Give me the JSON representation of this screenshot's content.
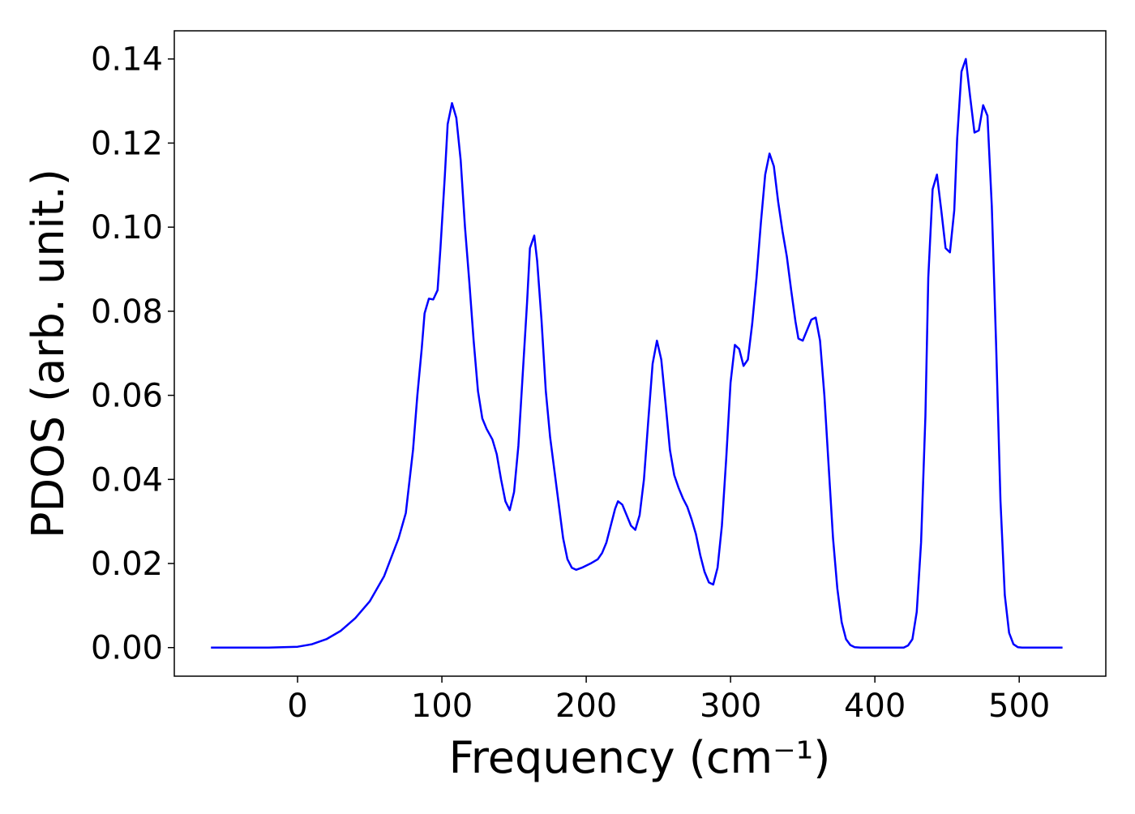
{
  "chart_data": {
    "type": "line",
    "xlabel": "Frequency (cm⁻¹)",
    "ylabel": "PDOS (arb. unit.)",
    "color": "#0000ff",
    "x": [
      -60,
      -20,
      0,
      10,
      20,
      30,
      40,
      50,
      60,
      70,
      75,
      80,
      83,
      86,
      88,
      91,
      94,
      97,
      99,
      102,
      104,
      107,
      110,
      113,
      116,
      119,
      122,
      125,
      128,
      131,
      135,
      138,
      141,
      144,
      147,
      150,
      153,
      156,
      159,
      161,
      164,
      166,
      169,
      172,
      175,
      178,
      181,
      184,
      187,
      190,
      193,
      197,
      203,
      208,
      211,
      214,
      217,
      220,
      222,
      225,
      228,
      231,
      234,
      237,
      240,
      243,
      246,
      249,
      252,
      255,
      258,
      261,
      264,
      267,
      270,
      273,
      276,
      279,
      282,
      285,
      288,
      291,
      294,
      297,
      300,
      303,
      306,
      309,
      312,
      315,
      318,
      321,
      324,
      327,
      330,
      333,
      336,
      339,
      342,
      345,
      347,
      350,
      353,
      356,
      359,
      362,
      365,
      368,
      371,
      374,
      377,
      380,
      383,
      386,
      390,
      420,
      423,
      426,
      429,
      432,
      435,
      437,
      440,
      443,
      446,
      449,
      452,
      455,
      457,
      460,
      463,
      466,
      469,
      472,
      475,
      478,
      481,
      484,
      487,
      490,
      493,
      496,
      499,
      502,
      530
    ],
    "values": [
      0,
      0,
      0.0002,
      0.0008,
      0.002,
      0.004,
      0.007,
      0.011,
      0.017,
      0.026,
      0.032,
      0.047,
      0.06,
      0.071,
      0.0795,
      0.083,
      0.0828,
      0.085,
      0.095,
      0.112,
      0.1245,
      0.1295,
      0.126,
      0.116,
      0.1,
      0.087,
      0.073,
      0.061,
      0.0545,
      0.052,
      0.0495,
      0.046,
      0.04,
      0.0348,
      0.0327,
      0.037,
      0.048,
      0.065,
      0.082,
      0.095,
      0.098,
      0.092,
      0.078,
      0.061,
      0.05,
      0.042,
      0.034,
      0.026,
      0.021,
      0.019,
      0.0185,
      0.019,
      0.02,
      0.021,
      0.0225,
      0.025,
      0.029,
      0.033,
      0.0348,
      0.034,
      0.0315,
      0.029,
      0.028,
      0.0315,
      0.04,
      0.054,
      0.0675,
      0.073,
      0.0685,
      0.058,
      0.047,
      0.041,
      0.038,
      0.0355,
      0.0335,
      0.0305,
      0.027,
      0.022,
      0.018,
      0.0155,
      0.015,
      0.019,
      0.029,
      0.045,
      0.063,
      0.072,
      0.071,
      0.067,
      0.0685,
      0.077,
      0.088,
      0.101,
      0.1125,
      0.1175,
      0.1145,
      0.106,
      0.099,
      0.093,
      0.085,
      0.0775,
      0.0735,
      0.073,
      0.0755,
      0.078,
      0.0785,
      0.073,
      0.06,
      0.043,
      0.026,
      0.014,
      0.006,
      0.002,
      0.0006,
      0.0001,
      0,
      0,
      0.0005,
      0.002,
      0.0085,
      0.025,
      0.055,
      0.088,
      0.109,
      0.1125,
      0.104,
      0.095,
      0.094,
      0.104,
      0.121,
      0.137,
      0.14,
      0.131,
      0.1225,
      0.123,
      0.129,
      0.1265,
      0.105,
      0.072,
      0.035,
      0.0125,
      0.0035,
      0.0008,
      0.0001,
      0,
      0
    ],
    "xlim": [
      -85.4,
      560
    ],
    "ylim": [
      -0.0068,
      0.1467
    ],
    "xticks": [
      0,
      100,
      200,
      300,
      400,
      500
    ],
    "yticks": [
      {
        "value": 0,
        "label": "0.00"
      },
      0.02,
      0.04,
      0.06,
      0.08,
      {
        "value": 0.1,
        "label": "0.10"
      },
      0.12,
      0.14
    ]
  }
}
